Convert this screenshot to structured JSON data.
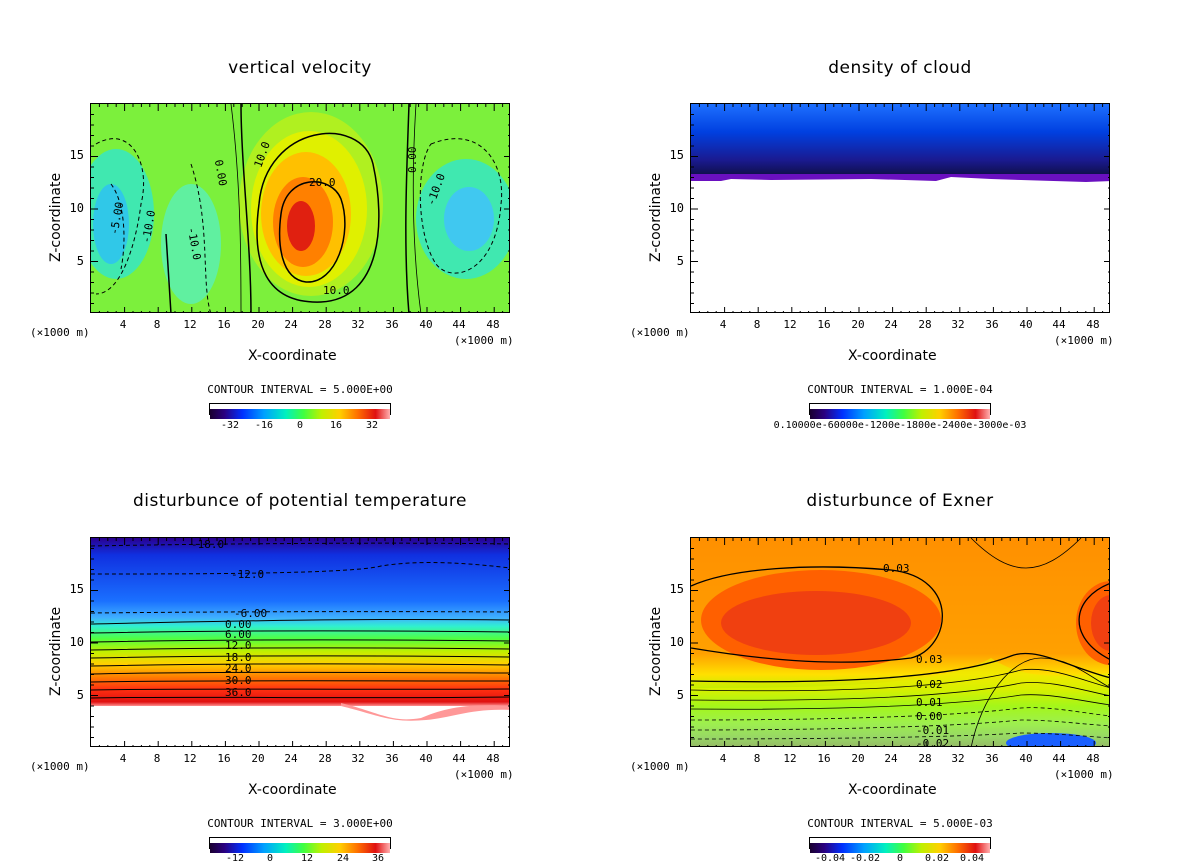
{
  "chart_data": [
    {
      "type": "contour",
      "title": "vertical velocity",
      "xlabel": "X-coordinate",
      "ylabel": "Z-coordinate",
      "x_unit": "(×1000 m)",
      "z_unit": "(×1000 m)",
      "xticks": [
        "4",
        "8",
        "12",
        "16",
        "20",
        "24",
        "28",
        "32",
        "36",
        "40",
        "44",
        "48"
      ],
      "yticks": [
        "15",
        "10",
        "5"
      ],
      "xlim": [
        0,
        50
      ],
      "ylim": [
        0,
        20
      ],
      "contour_interval": "CONTOUR INTERVAL = 5.000E+00",
      "colorbar_ticks": [
        "-32",
        "-16",
        "0",
        "16",
        "32"
      ],
      "contour_labels": [
        "0.00",
        "10.0",
        "20.0",
        "10.0",
        "0.00",
        "-10.0",
        "-10.0",
        "-5.00",
        "-10.0",
        "10.0"
      ]
    },
    {
      "type": "contour",
      "title": "density of cloud",
      "xlabel": "X-coordinate",
      "ylabel": "Z-coordinate",
      "x_unit": "(×1000 m)",
      "z_unit": "(×1000 m)",
      "xticks": [
        "4",
        "8",
        "12",
        "16",
        "20",
        "24",
        "28",
        "32",
        "36",
        "40",
        "44",
        "48"
      ],
      "yticks": [
        "15",
        "10",
        "5"
      ],
      "xlim": [
        0,
        50
      ],
      "ylim": [
        0,
        20
      ],
      "contour_interval": "CONTOUR INTERVAL = 1.000E-04",
      "colorbar_raw": "0.10000e-60000e-1200e-1800e-2400e-3000e-03"
    },
    {
      "type": "contour",
      "title": "disturbunce of potential temperature",
      "xlabel": "X-coordinate",
      "ylabel": "Z-coordinate",
      "x_unit": "(×1000 m)",
      "z_unit": "(×1000 m)",
      "xticks": [
        "4",
        "8",
        "12",
        "16",
        "20",
        "24",
        "28",
        "32",
        "36",
        "40",
        "44",
        "48"
      ],
      "yticks": [
        "15",
        "10",
        "5"
      ],
      "xlim": [
        0,
        50
      ],
      "ylim": [
        0,
        20
      ],
      "contour_interval": "CONTOUR INTERVAL = 3.000E+00",
      "colorbar_ticks": [
        "-12",
        "0",
        "12",
        "24",
        "36"
      ],
      "contour_labels": [
        "-18.0",
        "-12.0",
        "-6.00",
        "0.00",
        "6.00",
        "12.0",
        "18.0",
        "24.0",
        "30.0",
        "36.0"
      ]
    },
    {
      "type": "contour",
      "title": "disturbunce of Exner",
      "xlabel": "X-coordinate",
      "ylabel": "Z-coordinate",
      "x_unit": "(×1000 m)",
      "z_unit": "(×1000 m)",
      "xticks": [
        "4",
        "8",
        "12",
        "16",
        "20",
        "24",
        "28",
        "32",
        "36",
        "40",
        "44",
        "48"
      ],
      "yticks": [
        "15",
        "10",
        "5"
      ],
      "xlim": [
        0,
        50
      ],
      "ylim": [
        0,
        20
      ],
      "contour_interval": "CONTOUR INTERVAL = 5.000E-03",
      "colorbar_ticks": [
        "-0.04",
        "-0.02",
        "0",
        "0.02",
        "0.04"
      ],
      "contour_labels": [
        "0.03",
        "0.03",
        "0.02",
        "0.01",
        "0.00",
        "-0.01",
        "-0.02"
      ]
    }
  ]
}
